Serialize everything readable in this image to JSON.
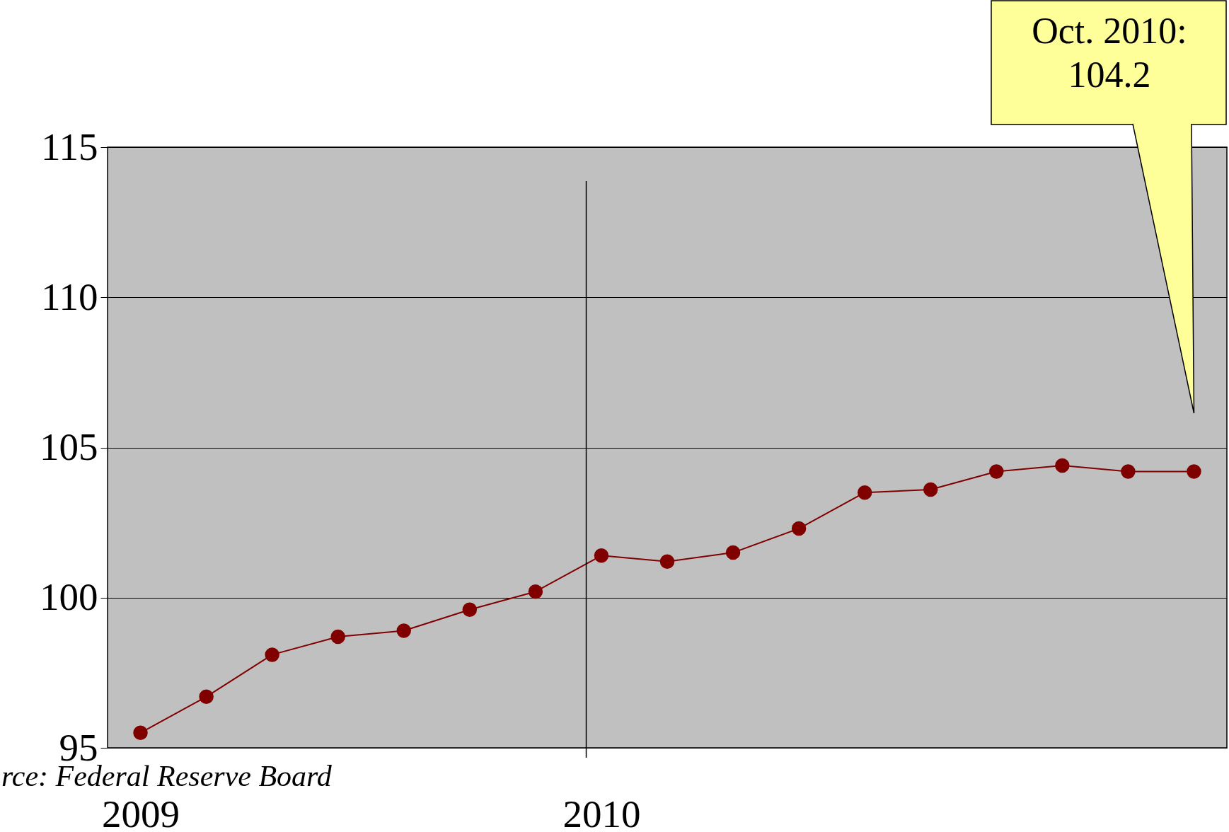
{
  "chart_data": {
    "type": "line",
    "categories": [
      "2009",
      null,
      null,
      null,
      null,
      null,
      null,
      "2010",
      null,
      null,
      null,
      null,
      null,
      null,
      null,
      null,
      null
    ],
    "series": [
      {
        "color": "#800000",
        "values": [
          95.5,
          96.7,
          98.1,
          98.7,
          98.9,
          99.6,
          100.2,
          101.4,
          101.2,
          101.5,
          102.3,
          103.5,
          103.6,
          104.2,
          104.4,
          104.2,
          104.2
        ]
      }
    ],
    "ylim": [
      95,
      115
    ],
    "yticks": [
      95,
      100,
      105,
      110,
      115
    ],
    "grid": "y",
    "marker": "circle",
    "line_style": "solid",
    "ref_lines": [
      {
        "axis": "x",
        "value": "2010",
        "color": "#000000"
      }
    ],
    "annotations": [
      "Oct. 2010:\n104.2",
      "rce:  Federal Reserve Board"
    ]
  }
}
